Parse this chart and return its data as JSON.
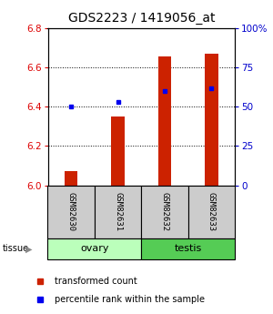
{
  "title": "GDS2223 / 1419056_at",
  "samples": [
    "GSM82630",
    "GSM82631",
    "GSM82632",
    "GSM82633"
  ],
  "transformed_counts": [
    6.07,
    6.35,
    6.655,
    6.67
  ],
  "percentile_ranks": [
    50,
    53,
    60,
    62
  ],
  "baseline": 6.0,
  "ylim_left": [
    6.0,
    6.8
  ],
  "ylim_right": [
    0,
    100
  ],
  "yticks_left": [
    6.0,
    6.2,
    6.4,
    6.6,
    6.8
  ],
  "yticks_right": [
    0,
    25,
    50,
    75,
    100
  ],
  "tissue_groups": [
    {
      "name": "ovary",
      "indices": [
        0,
        1
      ],
      "color": "#bbffbb"
    },
    {
      "name": "testis",
      "indices": [
        2,
        3
      ],
      "color": "#55cc55"
    }
  ],
  "bar_color": "#cc2200",
  "dot_color": "#0000ee",
  "bar_width": 0.28,
  "sample_box_color": "#cccccc",
  "title_fontsize": 10,
  "tick_fontsize": 7.5,
  "legend_fontsize": 7,
  "left_axis_color": "#dd0000",
  "right_axis_color": "#0000cc"
}
